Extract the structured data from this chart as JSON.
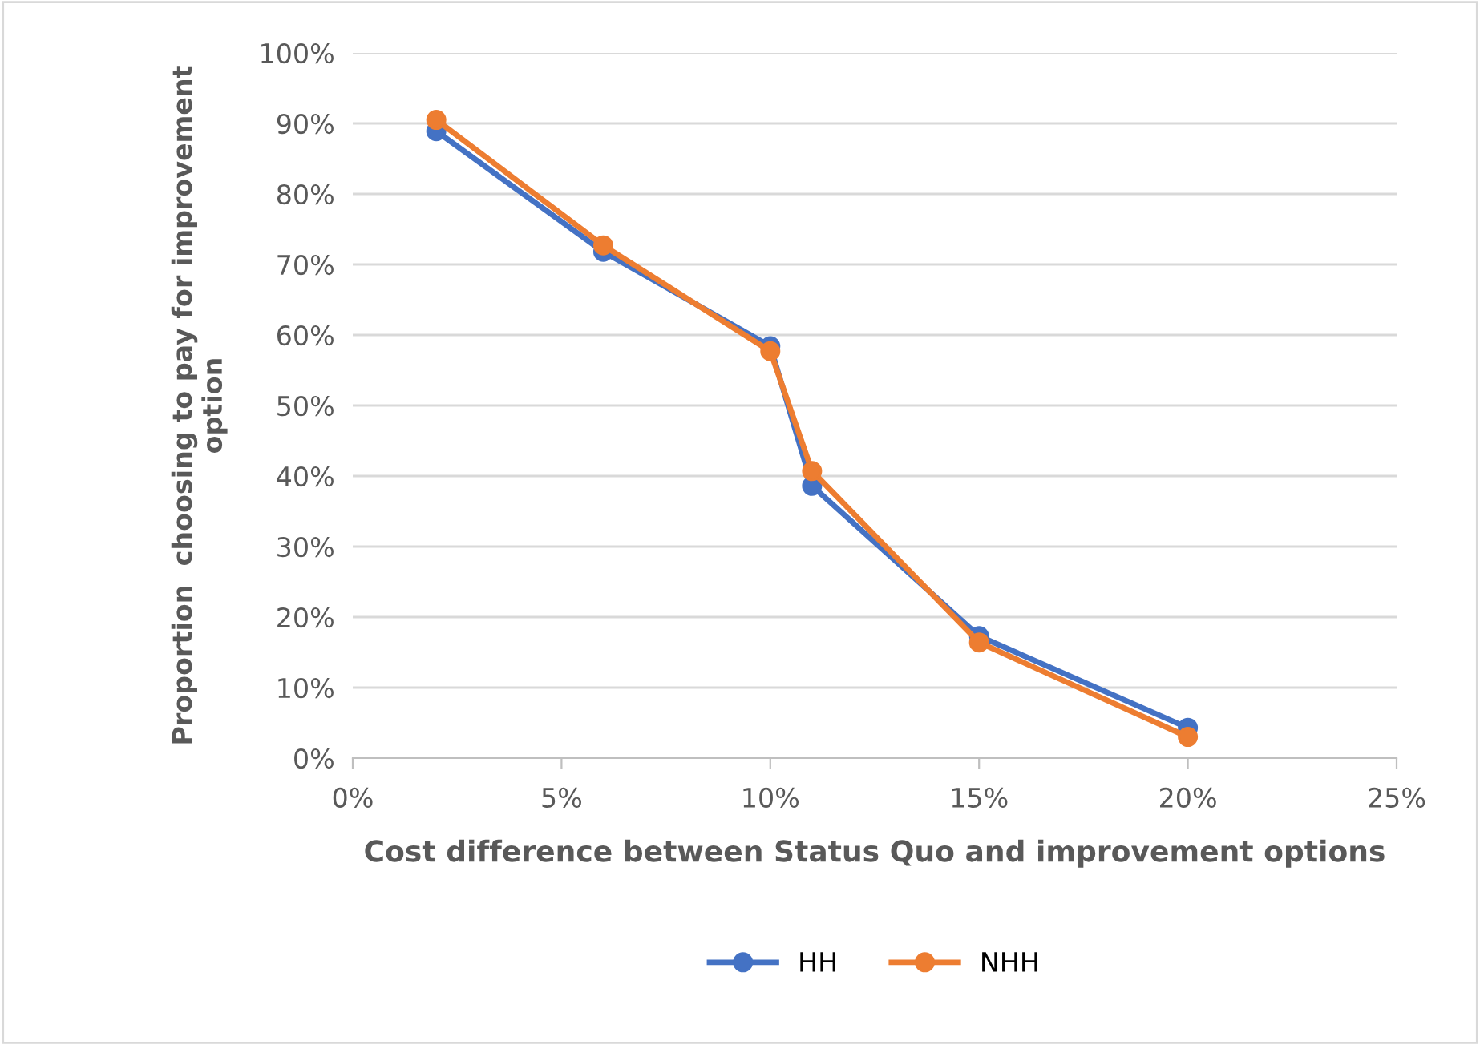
{
  "chart_data": {
    "type": "line",
    "xlabel": "Cost difference between Status Quo and improvement options",
    "ylabel": "Proportion  choosing to pay for improvement\noption",
    "x": [
      2,
      6,
      10,
      11,
      15,
      20
    ],
    "series": [
      {
        "name": "HH",
        "color": "#4472c4",
        "values": [
          88.9,
          71.8,
          58.4,
          38.6,
          17.3,
          4.3
        ]
      },
      {
        "name": "NHH",
        "color": "#ed7d31",
        "values": [
          90.5,
          72.7,
          57.7,
          40.7,
          16.4,
          3.0
        ]
      }
    ],
    "xlim": [
      0,
      25
    ],
    "xticks": [
      {
        "value": 0,
        "label": "0%"
      },
      {
        "value": 5,
        "label": "5%"
      },
      {
        "value": 10,
        "label": "10%"
      },
      {
        "value": 15,
        "label": "15%"
      },
      {
        "value": 20,
        "label": "20%"
      },
      {
        "value": 25,
        "label": "25%"
      }
    ],
    "ylim": [
      0,
      100
    ],
    "yticks": [
      {
        "value": 0,
        "label": "0%"
      },
      {
        "value": 10,
        "label": "10%"
      },
      {
        "value": 20,
        "label": "20%"
      },
      {
        "value": 30,
        "label": "30%"
      },
      {
        "value": 40,
        "label": "40%"
      },
      {
        "value": 50,
        "label": "50%"
      },
      {
        "value": 60,
        "label": "60%"
      },
      {
        "value": 70,
        "label": "70%"
      },
      {
        "value": 80,
        "label": "80%"
      },
      {
        "value": 90,
        "label": "90%"
      },
      {
        "value": 100,
        "label": "100%"
      }
    ],
    "grid": "y",
    "legend": "bottom",
    "marker": "circle",
    "line_style": "solid"
  }
}
